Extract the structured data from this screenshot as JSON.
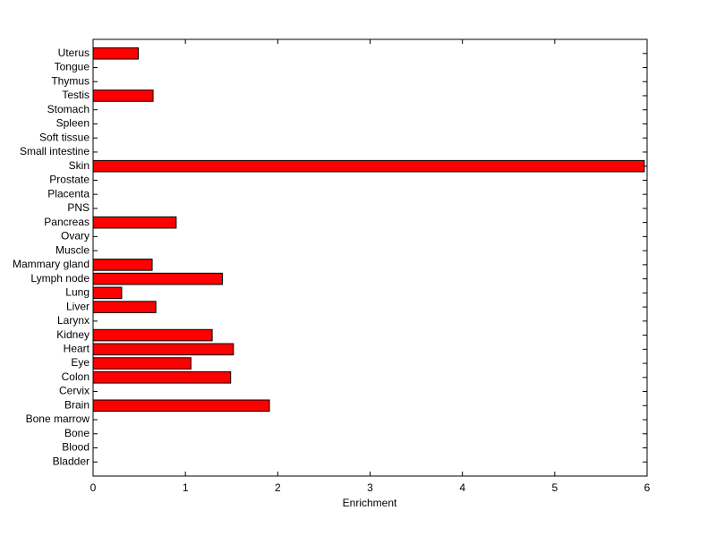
{
  "chart_data": {
    "type": "barh",
    "x_label": "Enrichment",
    "categories": [
      "Bladder",
      "Blood",
      "Bone",
      "Bone marrow",
      "Brain",
      "Cervix",
      "Colon",
      "Eye",
      "Heart",
      "Kidney",
      "Larynx",
      "Liver",
      "Lung",
      "Lymph node",
      "Mammary gland",
      "Muscle",
      "Ovary",
      "Pancreas",
      "PNS",
      "Placenta",
      "Prostate",
      "Skin",
      "Small intestine",
      "Soft tissue",
      "Spleen",
      "Stomach",
      "Testis",
      "Thymus",
      "Tongue",
      "Uterus"
    ],
    "values": [
      0,
      0,
      0,
      0,
      1.91,
      0,
      1.49,
      1.06,
      1.52,
      1.29,
      0,
      0.68,
      0.31,
      1.4,
      0.64,
      0,
      0,
      0.9,
      0,
      0,
      0,
      5.97,
      0,
      0,
      0,
      0,
      0.65,
      0,
      0,
      0.49
    ],
    "color": "#ff0000",
    "xlim": [
      0,
      6
    ],
    "xticks": [
      0,
      1,
      2,
      3,
      4,
      5,
      6
    ]
  }
}
